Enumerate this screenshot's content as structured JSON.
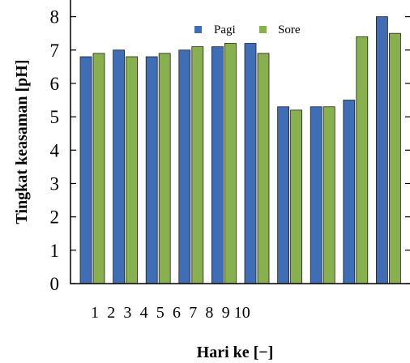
{
  "chart_data": {
    "type": "bar",
    "title": "",
    "xlabel": "Hari ke [−]",
    "ylabel": "Tingkat keasaman [pH]",
    "ylim": [
      0,
      8.5
    ],
    "yticks": [
      "0",
      "1",
      "2",
      "3",
      "4",
      "5",
      "6",
      "7",
      "8"
    ],
    "xtick_labels": [
      "1",
      "2",
      "3",
      "4",
      "5",
      "6",
      "7",
      "8",
      "9",
      "10"
    ],
    "series": [
      {
        "name": "Pagi",
        "color": "#3f6db6",
        "values": [
          6.8,
          7.0,
          6.8,
          7.0,
          7.1,
          7.2,
          5.3,
          5.3,
          5.5,
          8.0
        ]
      },
      {
        "name": "Sore",
        "color": "#88b04f",
        "values": [
          6.9,
          6.8,
          6.9,
          7.1,
          7.2,
          6.9,
          5.2,
          5.3,
          7.4,
          7.5
        ]
      }
    ],
    "legend_position": "top-center",
    "grid": false
  }
}
